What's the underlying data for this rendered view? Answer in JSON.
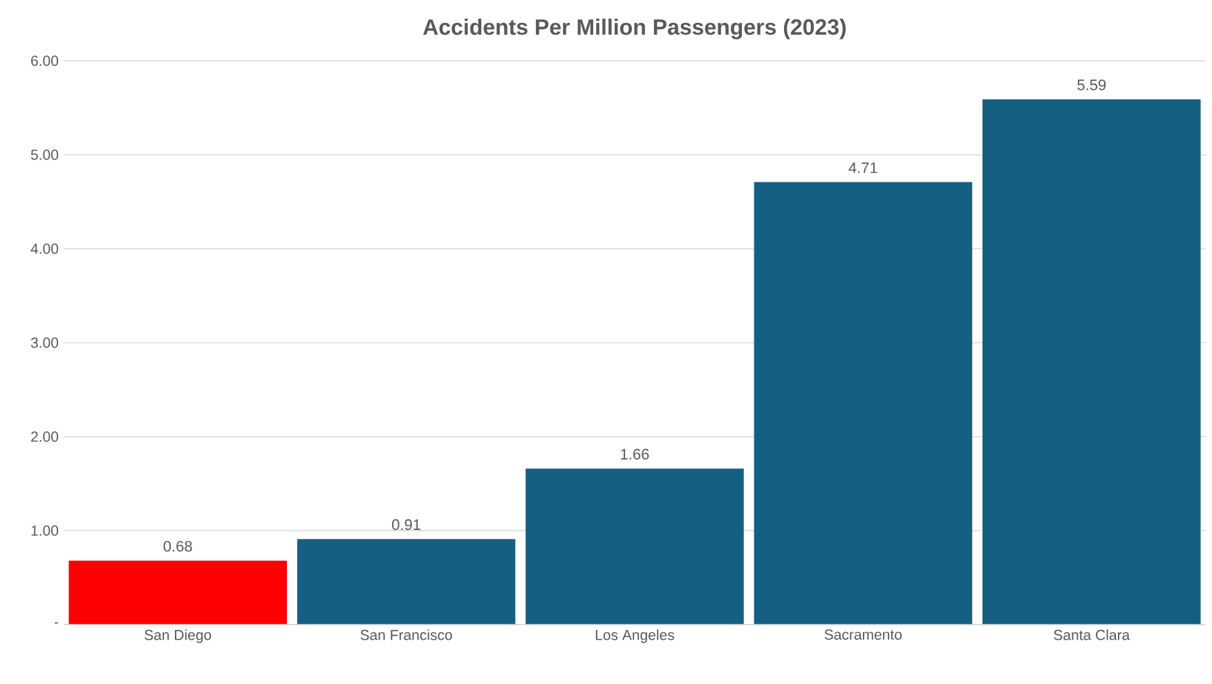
{
  "chart_data": {
    "type": "bar",
    "title": "Accidents Per Million Passengers (2023)",
    "categories": [
      "San Diego",
      "San Francisco",
      "Los Angeles",
      "Sacramento",
      "Santa Clara"
    ],
    "values": [
      0.68,
      0.91,
      1.66,
      4.71,
      5.59
    ],
    "colors": [
      "#ff0000",
      "#156082",
      "#156082",
      "#156082",
      "#156082"
    ],
    "ylim": [
      0,
      6
    ],
    "yticks": [
      {
        "value": 0,
        "label": "-"
      },
      {
        "value": 1,
        "label": "1.00"
      },
      {
        "value": 2,
        "label": "2.00"
      },
      {
        "value": 3,
        "label": "3.00"
      },
      {
        "value": 4,
        "label": "4.00"
      },
      {
        "value": 5,
        "label": "5.00"
      },
      {
        "value": 6,
        "label": "6.00"
      }
    ],
    "grid": "y",
    "data_labels": true
  }
}
